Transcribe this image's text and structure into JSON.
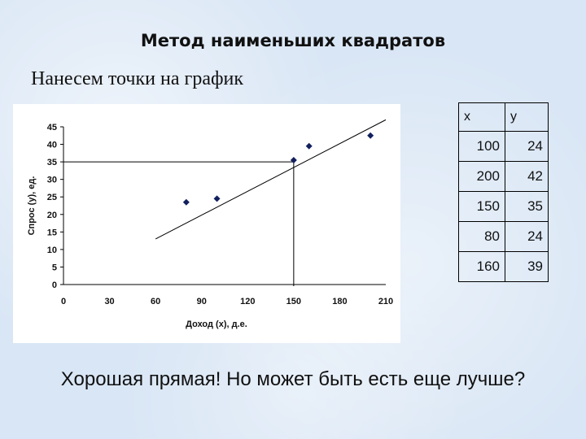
{
  "slide": {
    "title": "Метод наименьших квадратов",
    "subtitle": "Нанесем точки на график",
    "footer": "Хорошая прямая! Но может быть есть еще лучше?"
  },
  "table": {
    "headers": [
      "x",
      "y"
    ],
    "rows": [
      [
        "100",
        "24"
      ],
      [
        "200",
        "42"
      ],
      [
        "150",
        "35"
      ],
      [
        "80",
        "24"
      ],
      [
        "160",
        "39"
      ]
    ]
  },
  "chart_data": {
    "type": "scatter",
    "xlabel": "Доход (x), д.е.",
    "ylabel": "Спрос (y), ед.",
    "xlim": [
      0,
      210
    ],
    "ylim": [
      0,
      45
    ],
    "xticks": [
      0,
      30,
      60,
      90,
      120,
      150,
      180,
      210
    ],
    "yticks": [
      0,
      5,
      10,
      15,
      20,
      25,
      30,
      35,
      40,
      45
    ],
    "grid": false,
    "series": [
      {
        "points": [
          {
            "x": 80,
            "y": 23.5
          },
          {
            "x": 100,
            "y": 24.5
          },
          {
            "x": 150,
            "y": 35.5
          },
          {
            "x": 160,
            "y": 39.5
          },
          {
            "x": 200,
            "y": 42.5
          }
        ]
      }
    ],
    "fit_line": {
      "x": [
        60,
        210
      ],
      "y": [
        13,
        47
      ]
    },
    "guide_point": {
      "x": 150,
      "y": 35
    },
    "marker_color": "#12205e",
    "line_color": "#000000"
  }
}
